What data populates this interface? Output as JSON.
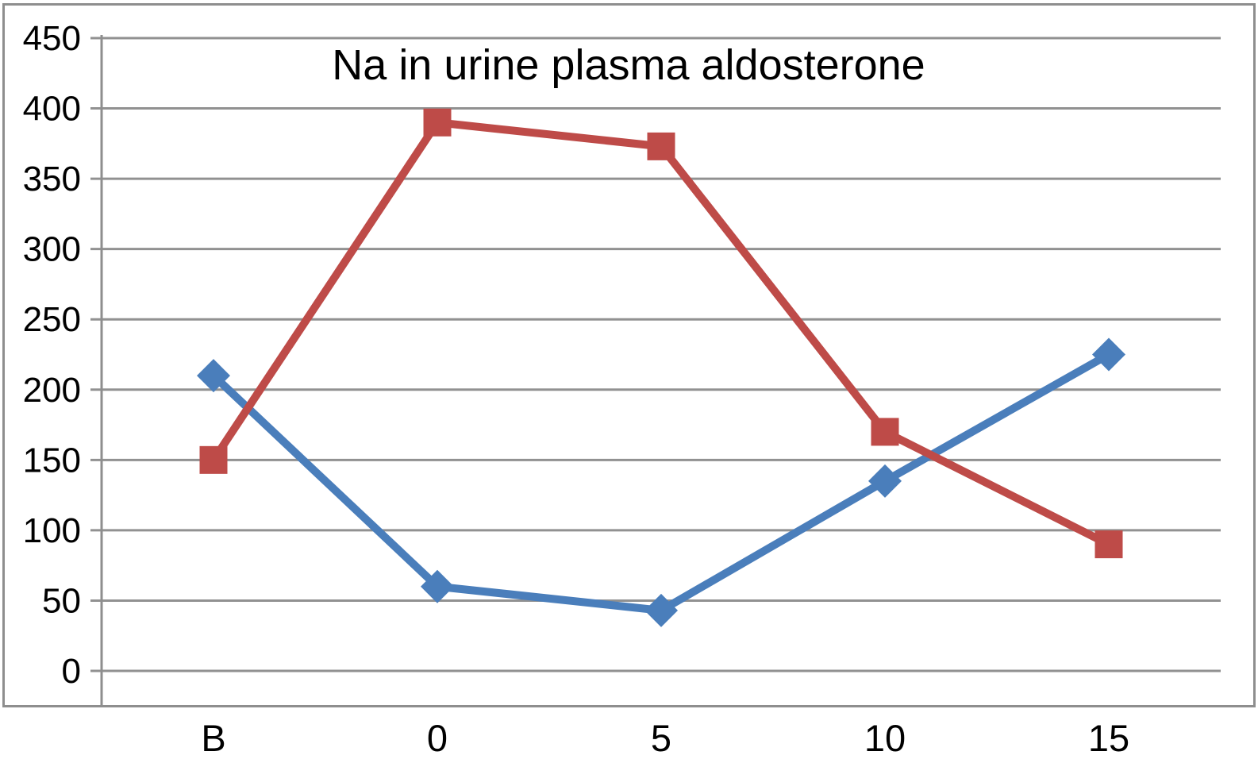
{
  "chart_data": {
    "type": "line",
    "title": "Na in urine plasma aldosterone",
    "xlabel": "",
    "ylabel": "",
    "categories": [
      "B",
      "0",
      "5",
      "10",
      "15"
    ],
    "series": [
      {
        "name": "series-blue-diamonds",
        "marker": "diamond",
        "color": "#4A7EBB",
        "values": [
          210,
          60,
          43,
          135,
          225
        ]
      },
      {
        "name": "series-red-squares",
        "marker": "square",
        "color": "#BE4B48",
        "values": [
          150,
          390,
          373,
          170,
          90
        ]
      }
    ],
    "ylim": [
      0,
      450
    ],
    "ytick_step": 50,
    "yticks": [
      "0",
      "50",
      "100",
      "150",
      "200",
      "250",
      "300",
      "350",
      "400",
      "450"
    ],
    "grid": "horizontal",
    "legend": "none",
    "colors": {
      "gridline": "#919191",
      "axis": "#8E8E8E",
      "border": "#8E8E8E",
      "text": "#000000",
      "background": "#FFFFFF"
    }
  }
}
